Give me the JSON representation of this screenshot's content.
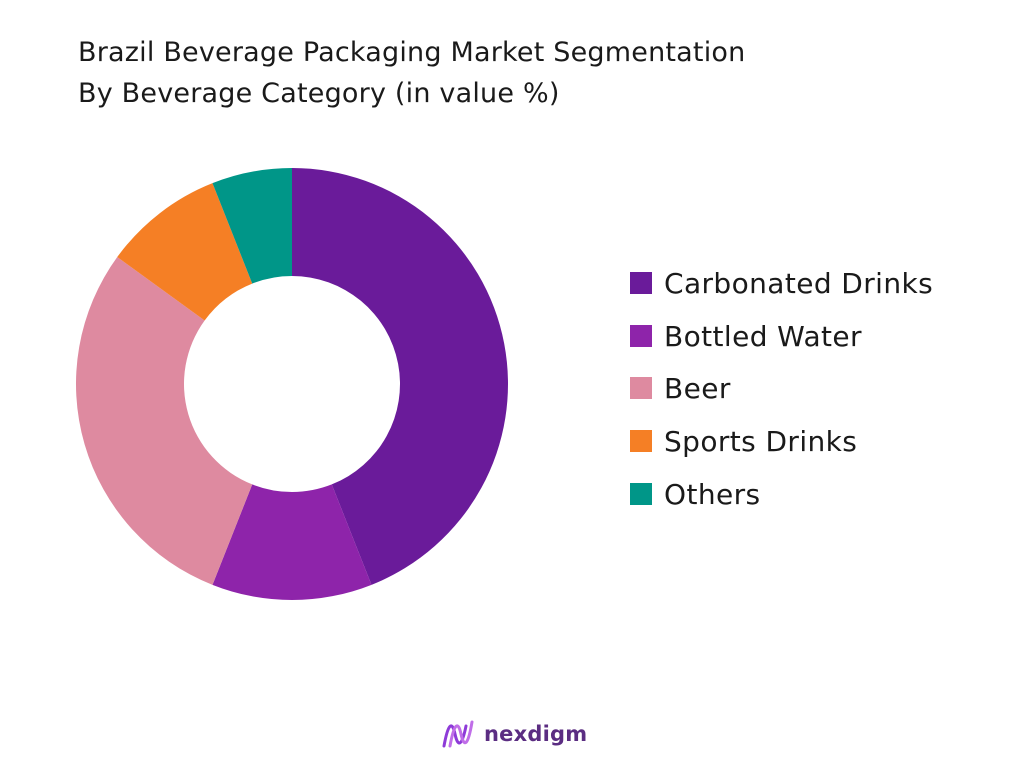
{
  "title": {
    "line1": "Brazil Beverage Packaging Market Segmentation",
    "line2": "By Beverage Category (in value %)"
  },
  "chart_data": {
    "type": "pie",
    "variant": "donut",
    "categories": [
      "Carbonated Drinks",
      "Bottled Water",
      "Beer",
      "Sports Drinks",
      "Others"
    ],
    "values": [
      44,
      12,
      29,
      9,
      6
    ],
    "colors": [
      "#6a1b9a",
      "#8e24aa",
      "#de8aa0",
      "#f57f25",
      "#009688"
    ],
    "legend_position": "right",
    "start_angle": "12 o'clock, clockwise"
  },
  "brand": {
    "name": "nexdigm",
    "logo_icon": "nexdigm-wave-logo-icon"
  }
}
